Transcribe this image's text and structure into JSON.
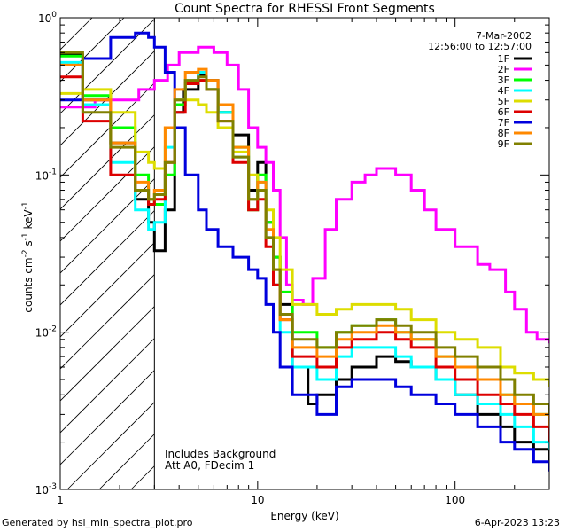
{
  "footer": {
    "generated_by": "Generated by hsi_min_spectra_plot.pro",
    "date": "6-Apr-2023 13:23"
  },
  "chart_data": {
    "type": "line",
    "title": "Count Spectra for RHESSI Front Segments",
    "xlabel": "Energy (keV)",
    "ylabel_parts": [
      "counts cm",
      "-2",
      " s",
      "-1",
      " keV",
      "-1"
    ],
    "x_scale": "log",
    "y_scale": "log",
    "xlim": [
      1,
      300
    ],
    "ylim": [
      0.001,
      1
    ],
    "x_ticks": [
      {
        "v": 1,
        "label": "1"
      },
      {
        "v": 10,
        "label": "10"
      },
      {
        "v": 100,
        "label": "100"
      }
    ],
    "y_ticks": [
      {
        "v": 1,
        "base": "10",
        "exp": "0"
      },
      {
        "v": 0.1,
        "base": "10",
        "exp": "-1"
      },
      {
        "v": 0.01,
        "base": "10",
        "exp": "-2"
      },
      {
        "v": 0.001,
        "base": "10",
        "exp": "-3"
      }
    ],
    "hatched_below_keV": 3,
    "legend": {
      "placement": "top-right",
      "lines": [
        "7-Mar-2002",
        "12:56:00 to 12:57:00"
      ]
    },
    "annotations": [
      "Includes Background",
      "Att A0, FDecim 1"
    ],
    "series": [
      {
        "name": "1F",
        "color": "#000000",
        "points": [
          [
            1,
            0.58
          ],
          [
            1.3,
            0.3
          ],
          [
            1.8,
            0.16
          ],
          [
            2.4,
            0.07
          ],
          [
            2.8,
            0.05
          ],
          [
            3,
            0.033
          ],
          [
            3.4,
            0.06
          ],
          [
            3.8,
            0.25
          ],
          [
            4.2,
            0.35
          ],
          [
            5,
            0.43
          ],
          [
            5.5,
            0.4
          ],
          [
            6.3,
            0.25
          ],
          [
            7.5,
            0.18
          ],
          [
            9,
            0.08
          ],
          [
            10,
            0.12
          ],
          [
            11,
            0.05
          ],
          [
            12,
            0.03
          ],
          [
            13,
            0.015
          ],
          [
            15,
            0.006
          ],
          [
            18,
            0.0035
          ],
          [
            20,
            0.004
          ],
          [
            25,
            0.005
          ],
          [
            30,
            0.006
          ],
          [
            40,
            0.007
          ],
          [
            50,
            0.0065
          ],
          [
            60,
            0.006
          ],
          [
            80,
            0.005
          ],
          [
            100,
            0.004
          ],
          [
            130,
            0.003
          ],
          [
            170,
            0.0025
          ],
          [
            200,
            0.002
          ],
          [
            250,
            0.0018
          ],
          [
            300,
            0.0015
          ]
        ]
      },
      {
        "name": "2F",
        "color": "#ff00ff",
        "points": [
          [
            1,
            0.27
          ],
          [
            1.5,
            0.3
          ],
          [
            2,
            0.3
          ],
          [
            2.5,
            0.35
          ],
          [
            3,
            0.4
          ],
          [
            3.5,
            0.5
          ],
          [
            4,
            0.6
          ],
          [
            5,
            0.65
          ],
          [
            6,
            0.6
          ],
          [
            7,
            0.5
          ],
          [
            8,
            0.35
          ],
          [
            9,
            0.2
          ],
          [
            10,
            0.15
          ],
          [
            11,
            0.12
          ],
          [
            12,
            0.08
          ],
          [
            13,
            0.04
          ],
          [
            14,
            0.02
          ],
          [
            15,
            0.016
          ],
          [
            17,
            0.015
          ],
          [
            19,
            0.022
          ],
          [
            22,
            0.045
          ],
          [
            25,
            0.07
          ],
          [
            30,
            0.09
          ],
          [
            35,
            0.1
          ],
          [
            40,
            0.11
          ],
          [
            50,
            0.1
          ],
          [
            60,
            0.08
          ],
          [
            70,
            0.06
          ],
          [
            80,
            0.045
          ],
          [
            100,
            0.035
          ],
          [
            130,
            0.027
          ],
          [
            150,
            0.025
          ],
          [
            180,
            0.018
          ],
          [
            200,
            0.014
          ],
          [
            230,
            0.01
          ],
          [
            260,
            0.009
          ],
          [
            300,
            0.0085
          ]
        ]
      },
      {
        "name": "3F",
        "color": "#00ff00",
        "points": [
          [
            1,
            0.57
          ],
          [
            1.3,
            0.32
          ],
          [
            1.8,
            0.2
          ],
          [
            2.4,
            0.1
          ],
          [
            2.8,
            0.07
          ],
          [
            3,
            0.065
          ],
          [
            3.4,
            0.1
          ],
          [
            3.8,
            0.28
          ],
          [
            4.3,
            0.38
          ],
          [
            5,
            0.4
          ],
          [
            5.5,
            0.35
          ],
          [
            6.3,
            0.25
          ],
          [
            7.5,
            0.15
          ],
          [
            9,
            0.06
          ],
          [
            10,
            0.1
          ],
          [
            11,
            0.05
          ],
          [
            12,
            0.03
          ],
          [
            13,
            0.018
          ],
          [
            15,
            0.01
          ],
          [
            20,
            0.008
          ],
          [
            25,
            0.01
          ],
          [
            30,
            0.011
          ],
          [
            40,
            0.012
          ],
          [
            50,
            0.01
          ],
          [
            60,
            0.009
          ],
          [
            80,
            0.007
          ],
          [
            100,
            0.006
          ],
          [
            130,
            0.005
          ],
          [
            170,
            0.004
          ],
          [
            200,
            0.0035
          ],
          [
            250,
            0.003
          ],
          [
            300,
            0.0025
          ]
        ]
      },
      {
        "name": "4F",
        "color": "#00ffff",
        "points": [
          [
            1,
            0.52
          ],
          [
            1.3,
            0.28
          ],
          [
            1.8,
            0.12
          ],
          [
            2.4,
            0.06
          ],
          [
            2.8,
            0.045
          ],
          [
            3,
            0.05
          ],
          [
            3.4,
            0.15
          ],
          [
            3.8,
            0.3
          ],
          [
            4.3,
            0.4
          ],
          [
            5,
            0.45
          ],
          [
            5.5,
            0.35
          ],
          [
            6.3,
            0.25
          ],
          [
            7.5,
            0.13
          ],
          [
            9,
            0.07
          ],
          [
            10,
            0.09
          ],
          [
            11,
            0.04
          ],
          [
            12,
            0.02
          ],
          [
            13,
            0.01
          ],
          [
            15,
            0.006
          ],
          [
            20,
            0.005
          ],
          [
            25,
            0.007
          ],
          [
            30,
            0.008
          ],
          [
            40,
            0.008
          ],
          [
            50,
            0.007
          ],
          [
            60,
            0.006
          ],
          [
            80,
            0.005
          ],
          [
            100,
            0.004
          ],
          [
            130,
            0.0035
          ],
          [
            170,
            0.003
          ],
          [
            200,
            0.0025
          ],
          [
            250,
            0.002
          ],
          [
            300,
            0.0018
          ]
        ]
      },
      {
        "name": "5F",
        "color": "#dddd00",
        "points": [
          [
            1,
            0.33
          ],
          [
            1.3,
            0.35
          ],
          [
            1.8,
            0.25
          ],
          [
            2.4,
            0.14
          ],
          [
            2.8,
            0.12
          ],
          [
            3,
            0.11
          ],
          [
            3.4,
            0.2
          ],
          [
            3.8,
            0.3
          ],
          [
            4.3,
            0.3
          ],
          [
            5,
            0.28
          ],
          [
            5.5,
            0.25
          ],
          [
            6.3,
            0.2
          ],
          [
            7.5,
            0.14
          ],
          [
            9,
            0.1
          ],
          [
            10,
            0.08
          ],
          [
            11,
            0.06
          ],
          [
            12,
            0.04
          ],
          [
            13,
            0.025
          ],
          [
            15,
            0.015
          ],
          [
            20,
            0.013
          ],
          [
            25,
            0.014
          ],
          [
            30,
            0.015
          ],
          [
            40,
            0.015
          ],
          [
            50,
            0.014
          ],
          [
            60,
            0.012
          ],
          [
            80,
            0.01
          ],
          [
            100,
            0.009
          ],
          [
            130,
            0.008
          ],
          [
            170,
            0.006
          ],
          [
            200,
            0.0055
          ],
          [
            250,
            0.005
          ],
          [
            300,
            0.0045
          ]
        ]
      },
      {
        "name": "6F",
        "color": "#dd0000",
        "points": [
          [
            1,
            0.42
          ],
          [
            1.3,
            0.22
          ],
          [
            1.8,
            0.1
          ],
          [
            2.4,
            0.08
          ],
          [
            2.8,
            0.065
          ],
          [
            3,
            0.07
          ],
          [
            3.4,
            0.12
          ],
          [
            3.8,
            0.25
          ],
          [
            4.3,
            0.38
          ],
          [
            5,
            0.4
          ],
          [
            5.5,
            0.35
          ],
          [
            6.3,
            0.22
          ],
          [
            7.5,
            0.12
          ],
          [
            9,
            0.06
          ],
          [
            10,
            0.07
          ],
          [
            11,
            0.035
          ],
          [
            12,
            0.02
          ],
          [
            13,
            0.012
          ],
          [
            15,
            0.007
          ],
          [
            20,
            0.006
          ],
          [
            25,
            0.008
          ],
          [
            30,
            0.009
          ],
          [
            40,
            0.01
          ],
          [
            50,
            0.009
          ],
          [
            60,
            0.008
          ],
          [
            80,
            0.006
          ],
          [
            100,
            0.005
          ],
          [
            130,
            0.004
          ],
          [
            170,
            0.0035
          ],
          [
            200,
            0.003
          ],
          [
            250,
            0.0025
          ],
          [
            300,
            0.002
          ]
        ]
      },
      {
        "name": "7F",
        "color": "#0000dd",
        "points": [
          [
            1,
            0.3
          ],
          [
            1.3,
            0.55
          ],
          [
            1.8,
            0.75
          ],
          [
            2.4,
            0.8
          ],
          [
            2.8,
            0.75
          ],
          [
            3,
            0.65
          ],
          [
            3.4,
            0.45
          ],
          [
            3.8,
            0.2
          ],
          [
            4.3,
            0.1
          ],
          [
            5,
            0.06
          ],
          [
            5.5,
            0.045
          ],
          [
            6.3,
            0.035
          ],
          [
            7.5,
            0.03
          ],
          [
            9,
            0.025
          ],
          [
            10,
            0.022
          ],
          [
            11,
            0.015
          ],
          [
            12,
            0.01
          ],
          [
            13,
            0.006
          ],
          [
            15,
            0.004
          ],
          [
            20,
            0.003
          ],
          [
            25,
            0.0045
          ],
          [
            30,
            0.005
          ],
          [
            40,
            0.005
          ],
          [
            50,
            0.0045
          ],
          [
            60,
            0.004
          ],
          [
            80,
            0.0035
          ],
          [
            100,
            0.003
          ],
          [
            130,
            0.0025
          ],
          [
            170,
            0.002
          ],
          [
            200,
            0.0018
          ],
          [
            250,
            0.0015
          ],
          [
            300,
            0.0013
          ]
        ]
      },
      {
        "name": "8F",
        "color": "#ff8800",
        "points": [
          [
            1,
            0.5
          ],
          [
            1.3,
            0.3
          ],
          [
            1.8,
            0.16
          ],
          [
            2.4,
            0.09
          ],
          [
            2.8,
            0.07
          ],
          [
            3,
            0.08
          ],
          [
            3.4,
            0.2
          ],
          [
            3.8,
            0.35
          ],
          [
            4.3,
            0.45
          ],
          [
            5,
            0.47
          ],
          [
            5.5,
            0.4
          ],
          [
            6.3,
            0.28
          ],
          [
            7.5,
            0.15
          ],
          [
            9,
            0.07
          ],
          [
            10,
            0.09
          ],
          [
            11,
            0.045
          ],
          [
            12,
            0.025
          ],
          [
            13,
            0.012
          ],
          [
            15,
            0.008
          ],
          [
            20,
            0.007
          ],
          [
            25,
            0.009
          ],
          [
            30,
            0.01
          ],
          [
            40,
            0.011
          ],
          [
            50,
            0.01
          ],
          [
            60,
            0.009
          ],
          [
            80,
            0.007
          ],
          [
            100,
            0.006
          ],
          [
            130,
            0.005
          ],
          [
            170,
            0.004
          ],
          [
            200,
            0.0035
          ],
          [
            250,
            0.003
          ],
          [
            300,
            0.0025
          ]
        ]
      },
      {
        "name": "9F",
        "color": "#808000",
        "points": [
          [
            1,
            0.6
          ],
          [
            1.3,
            0.25
          ],
          [
            1.8,
            0.15
          ],
          [
            2.4,
            0.08
          ],
          [
            2.8,
            0.07
          ],
          [
            3,
            0.075
          ],
          [
            3.4,
            0.12
          ],
          [
            3.8,
            0.3
          ],
          [
            4.3,
            0.4
          ],
          [
            5,
            0.42
          ],
          [
            5.5,
            0.35
          ],
          [
            6.3,
            0.22
          ],
          [
            7.5,
            0.13
          ],
          [
            9,
            0.07
          ],
          [
            10,
            0.08
          ],
          [
            11,
            0.04
          ],
          [
            12,
            0.025
          ],
          [
            13,
            0.013
          ],
          [
            15,
            0.009
          ],
          [
            20,
            0.008
          ],
          [
            25,
            0.01
          ],
          [
            30,
            0.011
          ],
          [
            40,
            0.012
          ],
          [
            50,
            0.011
          ],
          [
            60,
            0.01
          ],
          [
            80,
            0.008
          ],
          [
            100,
            0.007
          ],
          [
            130,
            0.006
          ],
          [
            170,
            0.005
          ],
          [
            200,
            0.004
          ],
          [
            250,
            0.0035
          ],
          [
            300,
            0.003
          ]
        ]
      }
    ]
  }
}
